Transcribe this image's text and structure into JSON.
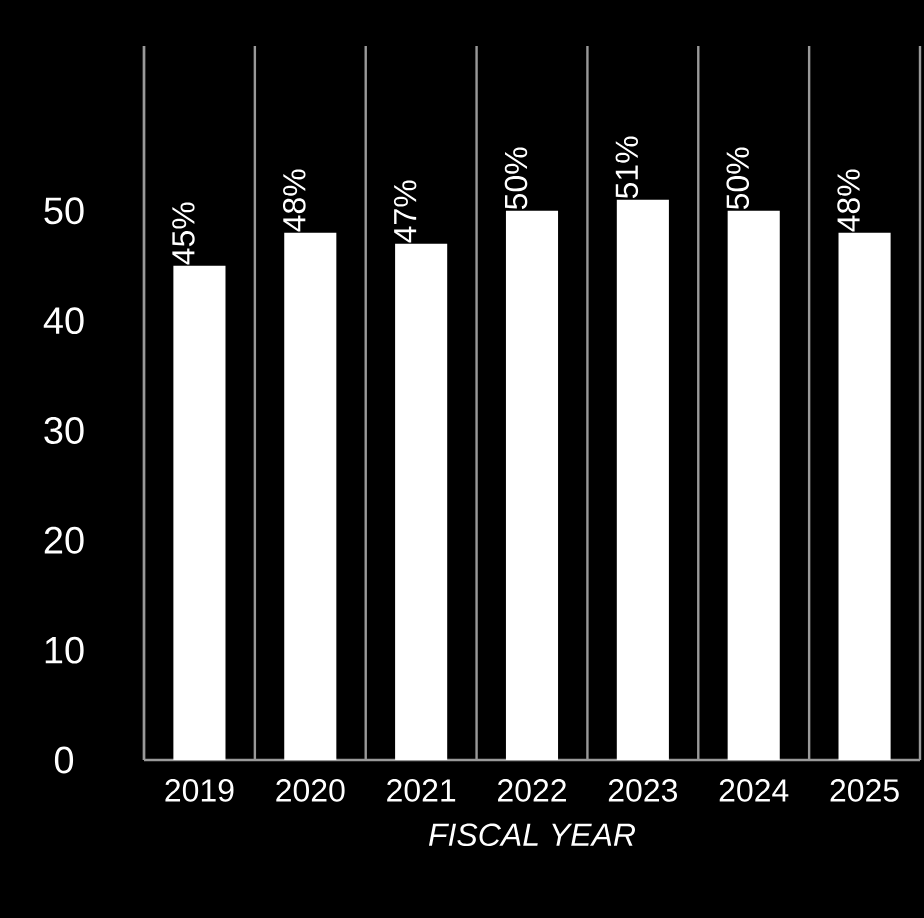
{
  "chart_data": {
    "type": "bar",
    "xlabel": "FISCAL YEAR",
    "categories": [
      "2019",
      "2020",
      "2021",
      "2022",
      "2023",
      "2024",
      "2025"
    ],
    "values": [
      45,
      48,
      47,
      50,
      51,
      50,
      48
    ],
    "value_labels": [
      "45%",
      "48%",
      "47%",
      "50%",
      "51%",
      "50%",
      "48%"
    ],
    "color": "#ffffff",
    "ylim": [
      0,
      65
    ],
    "yticks": [
      0,
      10,
      20,
      30,
      40,
      50
    ],
    "grid": "x"
  }
}
